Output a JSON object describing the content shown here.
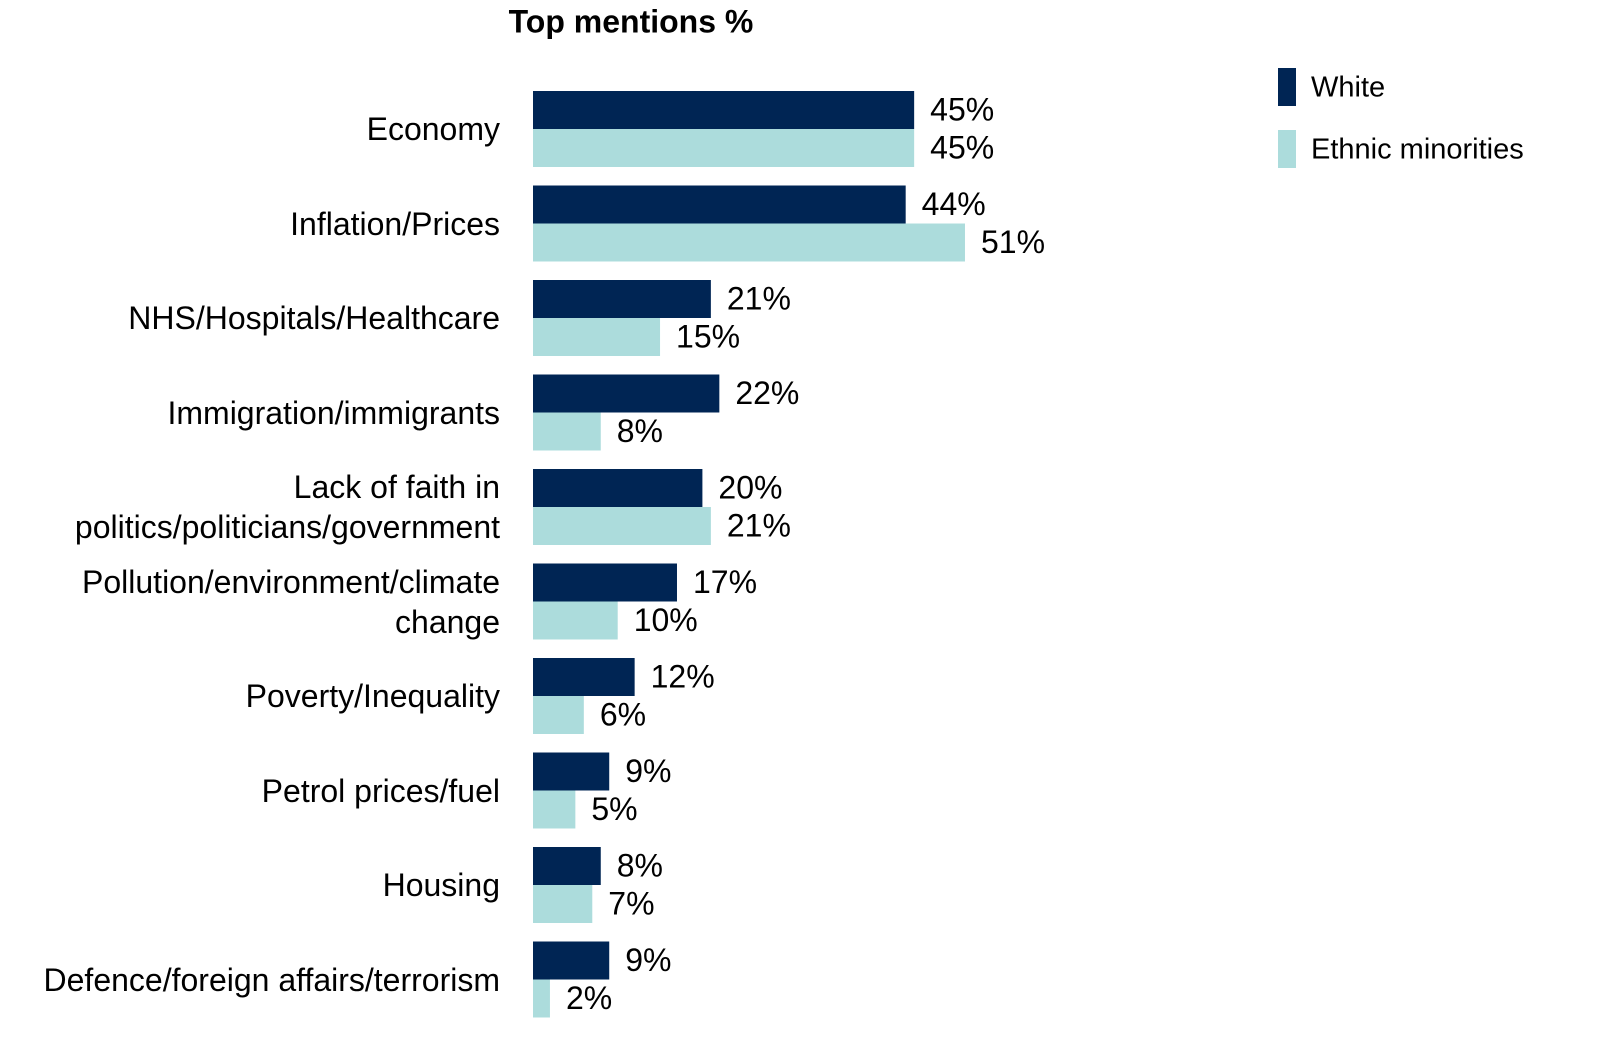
{
  "chart_data": {
    "type": "hbar",
    "title": "Top mentions %",
    "categories": [
      "Economy",
      "Inflation/Prices",
      "NHS/Hospitals/Healthcare",
      "Immigration/immigrants",
      "Lack of faith in\npolitics/politicians/government",
      "Pollution/environment/climate\nchange",
      "Poverty/Inequality",
      "Petrol prices/fuel",
      "Housing",
      "Defence/foreign affairs/terrorism"
    ],
    "series": [
      {
        "name": "White",
        "color": "#002554",
        "values": [
          45,
          44,
          21,
          22,
          20,
          17,
          12,
          9,
          8,
          9
        ],
        "value_labels": [
          "45%",
          "44%",
          "21%",
          "22%",
          "20%",
          "17%",
          "12%",
          "9%",
          "8%",
          "9%"
        ]
      },
      {
        "name": "Ethnic minorities",
        "color": "#acdcdc",
        "values": [
          45,
          51,
          15,
          8,
          21,
          10,
          6,
          5,
          7,
          2
        ],
        "value_labels": [
          "45%",
          "51%",
          "15%",
          "8%",
          "21%",
          "10%",
          "6%",
          "5%",
          "7%",
          "2%"
        ]
      }
    ],
    "legend": "top-right"
  }
}
